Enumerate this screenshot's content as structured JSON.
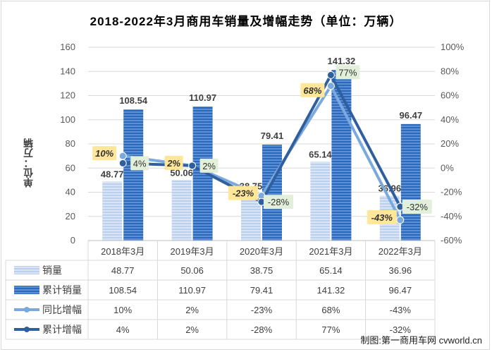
{
  "chart_data": {
    "type": "bar",
    "title": "2018-2022年3月商用车销量及增幅走势（单位：万辆）",
    "ylabel": "单位：万辆",
    "categories": [
      "2018年3月",
      "2019年3月",
      "2020年3月",
      "2021年3月",
      "2022年3月"
    ],
    "ylim": [
      0,
      160
    ],
    "yticks": [
      "0",
      "20",
      "40",
      "60",
      "80",
      "100",
      "120",
      "140",
      "160"
    ],
    "y2lim": [
      -60,
      100
    ],
    "y2ticks": [
      "-60%",
      "-40%",
      "-20%",
      "0%",
      "20%",
      "40%",
      "60%",
      "80%",
      "100%"
    ],
    "grid": true,
    "legend": "table-bottom",
    "series": [
      {
        "name": "销量",
        "kind": "bar",
        "axis": "left",
        "values": [
          48.77,
          50.06,
          38.75,
          65.14,
          36.96
        ],
        "labels": [
          "48.77",
          "50.06",
          "38.75",
          "65.14",
          "36.96"
        ],
        "table": [
          "48.77",
          "50.06",
          "38.75",
          "65.14",
          "36.96"
        ],
        "color": "#c6d7ef"
      },
      {
        "name": "累计销量",
        "kind": "bar",
        "axis": "left",
        "values": [
          108.54,
          110.97,
          79.41,
          141.32,
          96.47
        ],
        "labels": [
          "108.54",
          "110.97",
          "79.41",
          "141.32",
          "96.47"
        ],
        "table": [
          "108.54",
          "110.97",
          "79.41",
          "141.32",
          "96.47"
        ],
        "color": "#3a76c4"
      },
      {
        "name": "同比增幅",
        "kind": "line",
        "axis": "right",
        "values": [
          10,
          2,
          -23,
          68,
          -43
        ],
        "labels": [
          "10%",
          "2%",
          "-23%",
          "68%",
          "-43%"
        ],
        "table": [
          "10%",
          "2%",
          "-23%",
          "68%",
          "-43%"
        ],
        "color": "#7aa9dd"
      },
      {
        "name": "累计增幅",
        "kind": "line",
        "axis": "right",
        "values": [
          4,
          2,
          -28,
          77,
          -32
        ],
        "labels": [
          "4%",
          "2%",
          "-28%",
          "77%",
          "-32%"
        ],
        "table": [
          "4%",
          "2%",
          "-28%",
          "77%",
          "-32%"
        ],
        "color": "#2f5f9e"
      }
    ],
    "colors": {
      "label_yoy_bg": "#ffe699",
      "label_cum_bg": "#e2efda",
      "grid": "#d9d9d9",
      "axis_text": "#595959"
    }
  },
  "credit": "制图:第一商用车网 cvworld.cn"
}
